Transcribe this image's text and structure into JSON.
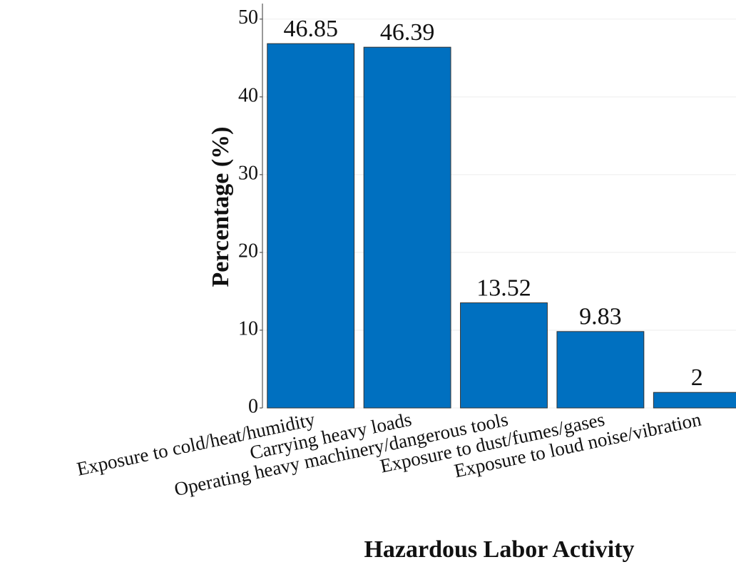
{
  "chart_data": {
    "type": "bar",
    "x_label": "Hazardous Labor Activity",
    "y_label": "Percentage (%)",
    "categories": [
      "Exposure to cold/heat/humidity",
      "Carrying heavy loads",
      "Operating heavy machinery/dangerous tools",
      "Exposure to dust/fumes/gases",
      "Exposure to loud noise/vibration"
    ],
    "values": [
      46.85,
      46.39,
      13.52,
      9.83,
      2
    ],
    "color": "#0070c0",
    "ylim": [
      0,
      52
    ],
    "yticks": [
      0,
      10,
      20,
      30,
      40,
      50
    ],
    "grid": true
  }
}
